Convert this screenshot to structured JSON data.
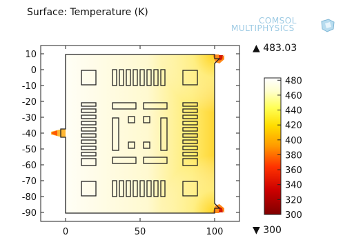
{
  "title": "Surface: Temperature (K)",
  "logo": {
    "line1": "COMSOL",
    "line2": "MULTIPHYSICS"
  },
  "chart_data": {
    "type": "heatmap",
    "title": "Surface: Temperature (K)",
    "xlabel": "",
    "ylabel": "",
    "xlim": [
      -16,
      111
    ],
    "ylim": [
      -95,
      13
    ],
    "x_ticks": [
      0,
      50,
      100
    ],
    "y_ticks": [
      10,
      0,
      -10,
      -20,
      -30,
      -40,
      -50,
      -60,
      -70,
      -80,
      -90
    ],
    "grid": false,
    "colorbar": {
      "min": 300,
      "max": 483.03,
      "ticks": [
        480,
        460,
        440,
        420,
        400,
        380,
        360,
        340,
        320,
        300
      ],
      "colors": [
        "#7f0000",
        "#cc0000",
        "#ff3300",
        "#ff9900",
        "#ffdd00",
        "#ffff55",
        "#ffffcc",
        "#ffffff"
      ]
    },
    "max_value": "483.03",
    "min_value": "300"
  },
  "max_marker": "▲",
  "min_marker": "▼"
}
